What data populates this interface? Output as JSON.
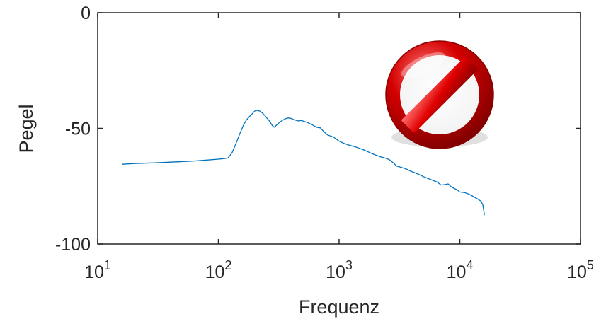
{
  "chart_data": {
    "type": "line",
    "title": "",
    "xlabel": "Frequenz",
    "ylabel": "Pegel",
    "xscale": "log",
    "xlim": [
      10,
      100000
    ],
    "ylim": [
      -100,
      0
    ],
    "grid": false,
    "legend": "none",
    "x_ticks": [
      {
        "value": 10,
        "base": "10",
        "exp": "1"
      },
      {
        "value": 100,
        "base": "10",
        "exp": "2"
      },
      {
        "value": 1000,
        "base": "10",
        "exp": "3"
      },
      {
        "value": 10000,
        "base": "10",
        "exp": "4"
      },
      {
        "value": 100000,
        "base": "10",
        "exp": "5"
      }
    ],
    "y_ticks": [
      {
        "value": 0,
        "label": "0"
      },
      {
        "value": -50,
        "label": "-50"
      },
      {
        "value": -100,
        "label": "-100"
      }
    ],
    "series": [
      {
        "color": "#0072bd",
        "x": [
          16,
          20,
          30,
          40,
          60,
          80,
          100,
          110,
          120,
          130,
          140,
          150,
          160,
          170,
          180,
          190,
          200,
          210,
          220,
          230,
          240,
          250,
          260,
          270,
          280,
          290,
          300,
          320,
          340,
          360,
          380,
          400,
          420,
          440,
          460,
          480,
          500,
          550,
          600,
          650,
          700,
          750,
          800,
          900,
          1000,
          1100,
          1200,
          1400,
          1600,
          1800,
          2000,
          2200,
          2400,
          2600,
          2800,
          3000,
          3500,
          4000,
          4500,
          5000,
          5500,
          6000,
          6500,
          7000,
          7500,
          8000,
          8500,
          9000,
          9500,
          10000,
          11000,
          12000,
          13000,
          14000,
          15000,
          15500,
          16000
        ],
        "y": [
          -65.5,
          -65.2,
          -64.9,
          -64.6,
          -64.2,
          -63.7,
          -63.3,
          -63.1,
          -62.8,
          -60.5,
          -56.5,
          -52.5,
          -49,
          -46.5,
          -45,
          -43.8,
          -42.5,
          -42.2,
          -42.5,
          -43.2,
          -44.2,
          -45.3,
          -46.3,
          -47.5,
          -48.8,
          -49.5,
          -48.8,
          -47.5,
          -46.5,
          -45.8,
          -45.5,
          -45.7,
          -46.2,
          -46.5,
          -46.8,
          -46.6,
          -46.8,
          -47.5,
          -48.5,
          -49.5,
          -49.8,
          -51.5,
          -52.8,
          -53.8,
          -55.5,
          -56.5,
          -57.2,
          -58.2,
          -59.3,
          -60.5,
          -61.5,
          -62.3,
          -62.8,
          -63.5,
          -64.8,
          -66.3,
          -67.3,
          -68.7,
          -69.7,
          -70.9,
          -71.7,
          -72.5,
          -73.2,
          -74.5,
          -74.3,
          -74,
          -75.3,
          -76,
          -76.5,
          -77.5,
          -77.8,
          -78.5,
          -79.5,
          -80.5,
          -81.5,
          -83,
          -87.5
        ]
      }
    ]
  },
  "overlay": {
    "icon": "prohibited-icon",
    "fill_color": "#d40000",
    "ring_gradient": [
      "#ff6a6a",
      "#c80000",
      "#7a0000"
    ]
  }
}
